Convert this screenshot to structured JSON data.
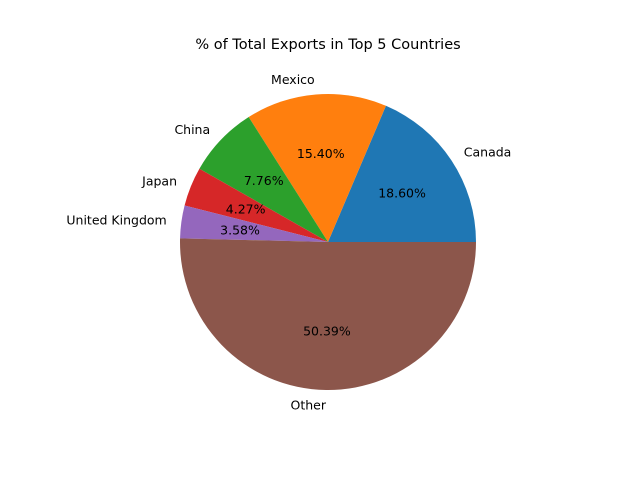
{
  "chart_data": {
    "type": "pie",
    "title": "% of Total Exports in Top 5 Countries",
    "start_angle_deg": 0,
    "direction": "counterclockwise",
    "legend": "none",
    "slices": [
      {
        "label": "Canada",
        "value": 18.6,
        "pct_label": "18.60%",
        "color": "#1f77b4"
      },
      {
        "label": "Mexico",
        "value": 15.4,
        "pct_label": "15.40%",
        "color": "#ff7f0e"
      },
      {
        "label": "China",
        "value": 7.76,
        "pct_label": "7.76%",
        "color": "#2ca02c"
      },
      {
        "label": "Japan",
        "value": 4.27,
        "pct_label": "4.27%",
        "color": "#d62728"
      },
      {
        "label": "United Kingdom",
        "value": 3.58,
        "pct_label": "3.58%",
        "color": "#9467bd"
      },
      {
        "label": "Other",
        "value": 50.39,
        "pct_label": "50.39%",
        "color": "#8c564b"
      }
    ]
  }
}
